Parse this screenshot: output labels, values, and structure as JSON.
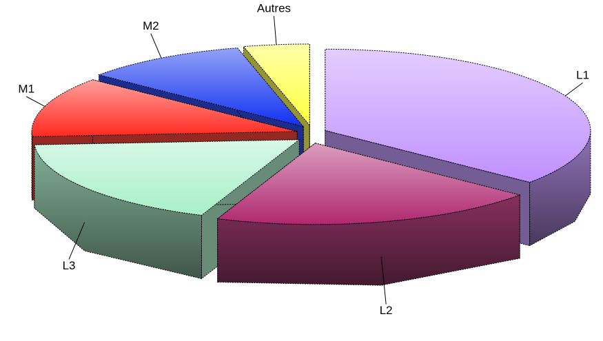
{
  "chart_data": {
    "type": "pie",
    "style": "3d-exploded",
    "categories": [
      "L1",
      "L2",
      "L3",
      "M1",
      "M2",
      "Autres"
    ],
    "values": [
      36,
      20,
      18,
      12,
      10,
      4
    ],
    "colors": [
      "#c090ff",
      "#b02870",
      "#a8f0c8",
      "#ff2a20",
      "#1030f0",
      "#ffff40"
    ]
  }
}
